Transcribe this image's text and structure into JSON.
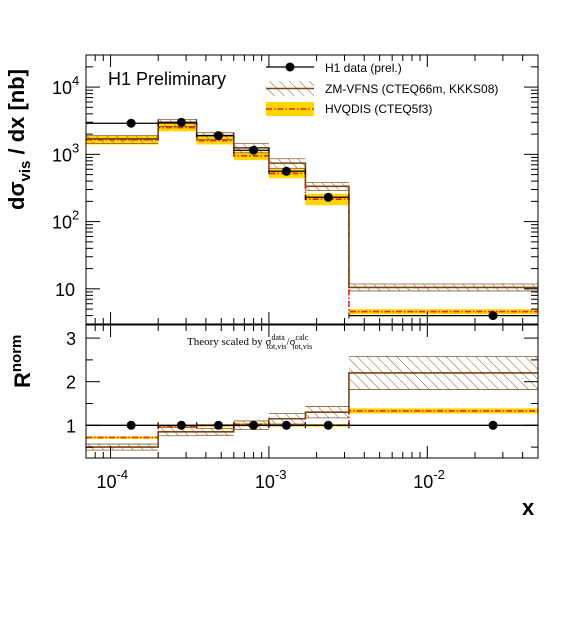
{
  "chart_data": [
    {
      "type": "step-histogram",
      "annotation": "H1 Preliminary",
      "ylabel": "dσ_vis / dx [nb]",
      "ylabel_main": "dσ",
      "ylabel_sub": "vis",
      "ylabel_rest": " / dx [nb]",
      "xscale": "log",
      "yscale": "log",
      "xlim": [
        7e-05,
        0.05
      ],
      "ylim": [
        3,
        30000
      ],
      "y_ticks": [
        {
          "value": 10,
          "base": "10",
          "exp": ""
        },
        {
          "value": 100,
          "base": "10",
          "exp": "2"
        },
        {
          "value": 1000,
          "base": "10",
          "exp": "3"
        },
        {
          "value": 10000,
          "base": "10",
          "exp": "4"
        }
      ],
      "bin_edges": [
        7e-05,
        0.0002,
        0.00035,
        0.0006,
        0.001,
        0.0017,
        0.0032,
        0.05
      ],
      "legend_position": "top-right",
      "series": [
        {
          "name": "H1 data (prel.)",
          "style": "points",
          "x": [
            0.000135,
            0.00028,
            0.00048,
            0.0008,
            0.00129,
            0.00237,
            0.026
          ],
          "values": [
            2900,
            3000,
            1900,
            1150,
            560,
            230,
            4
          ]
        },
        {
          "name": "ZM-VFNS (CTEQ66m, KKKS08)",
          "style": "band-hatched",
          "values": [
            1700,
            2900,
            1900,
            1250,
            740,
            335,
            10.5
          ],
          "low": [
            1450,
            2600,
            1650,
            1050,
            620,
            290,
            9.3
          ],
          "high": [
            1900,
            3300,
            2100,
            1450,
            860,
            380,
            11.8
          ]
        },
        {
          "name": "HVQDIS (CTEQ5f3)",
          "style": "band-filled",
          "values": [
            1650,
            2500,
            1600,
            950,
            520,
            215,
            4.6
          ],
          "low": [
            1400,
            2200,
            1400,
            820,
            440,
            175,
            4.2
          ],
          "high": [
            1900,
            2850,
            1850,
            1100,
            610,
            260,
            5.0
          ]
        }
      ],
      "colors": {
        "data": "#000000",
        "zm_line": "#7a4512",
        "zm_hatch": "#8b5a2b",
        "hvq_band": "#ffd700",
        "hvq_line": "#e8231a"
      }
    },
    {
      "type": "step-histogram",
      "annotation": "Theory scaled by σ",
      "annotation_parts": {
        "lead": "Theory scaled by σ",
        "sup1": "data",
        "sub1": "tot,vis",
        "mid": "/σ",
        "sup2": "calc",
        "sub2": "tot,vis"
      },
      "ylabel": "R^norm",
      "ylabel_main": "R",
      "ylabel_sup": "norm",
      "xlabel": "x",
      "xscale": "log",
      "xlim": [
        7e-05,
        0.05
      ],
      "ylim": [
        0.25,
        3.3
      ],
      "y_ticks": [
        1,
        2,
        3
      ],
      "x_ticks": [
        {
          "value": 0.0001,
          "base": "10",
          "exp": "-4"
        },
        {
          "value": 0.001,
          "base": "10",
          "exp": "-3"
        },
        {
          "value": 0.01,
          "base": "10",
          "exp": "-2"
        }
      ],
      "bin_edges": [
        7e-05,
        0.0002,
        0.00035,
        0.0006,
        0.001,
        0.0017,
        0.0032,
        0.05
      ],
      "series": [
        {
          "name": "H1 data (prel.)",
          "style": "points",
          "x": [
            0.000135,
            0.00028,
            0.00048,
            0.0008,
            0.00129,
            0.00237,
            0.026
          ],
          "values": [
            1,
            1,
            1,
            1,
            1,
            1,
            1
          ]
        },
        {
          "name": "ZM-VFNS (CTEQ66m, KKKS08)",
          "style": "band-hatched",
          "values": [
            0.5,
            0.85,
            0.85,
            1.0,
            1.15,
            1.3,
            2.2
          ],
          "low": [
            0.43,
            0.76,
            0.77,
            0.9,
            1.03,
            1.17,
            1.82
          ],
          "high": [
            0.57,
            0.95,
            0.93,
            1.1,
            1.27,
            1.43,
            2.58
          ]
        },
        {
          "name": "HVQDIS (CTEQ5f3)",
          "style": "band-filled",
          "values": [
            0.72,
            0.98,
            1.0,
            1.02,
            1.0,
            1.0,
            1.33
          ],
          "low": [
            0.69,
            0.95,
            0.97,
            0.99,
            0.97,
            0.97,
            1.27
          ],
          "high": [
            0.75,
            1.01,
            1.03,
            1.05,
            1.03,
            1.03,
            1.39
          ]
        }
      ]
    }
  ]
}
